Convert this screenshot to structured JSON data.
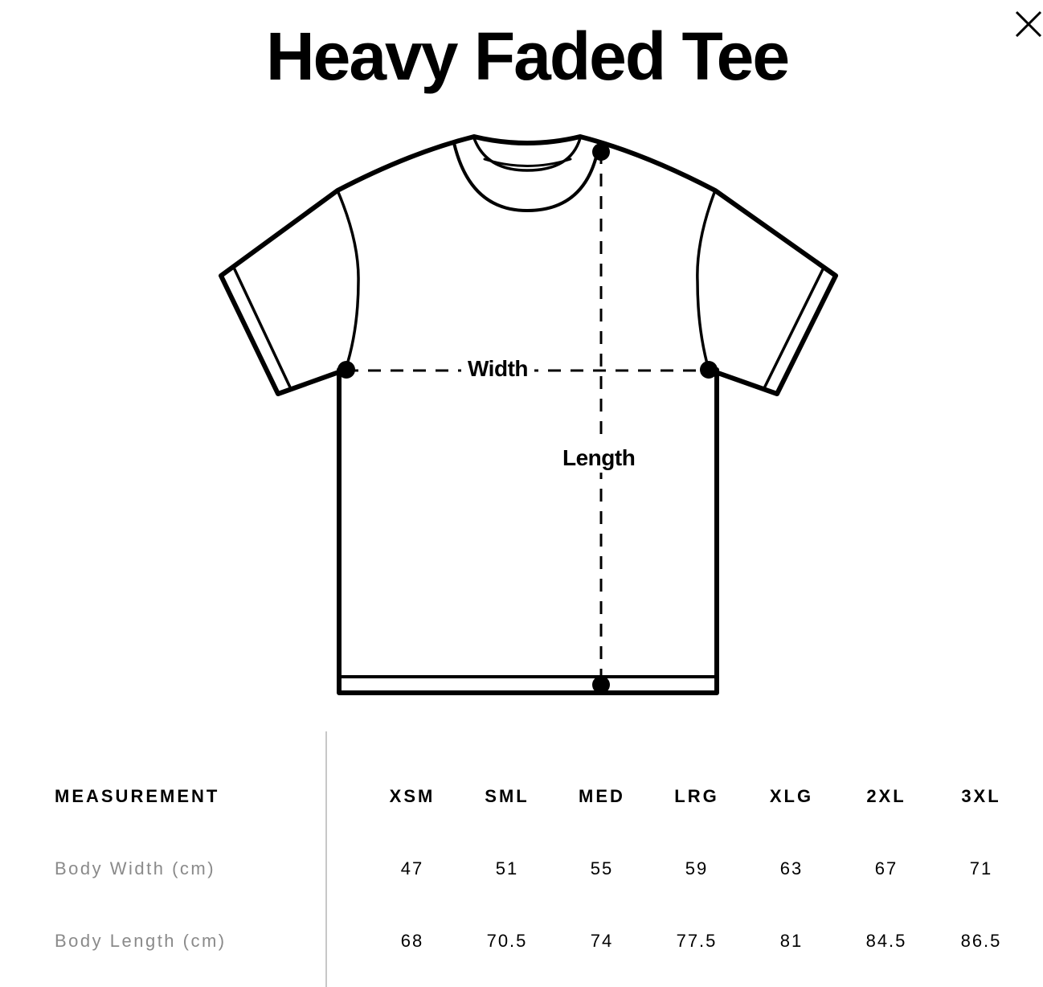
{
  "title": "Heavy Faded Tee",
  "close_icon": "close-x-icon",
  "diagram": {
    "width_label": "Width",
    "length_label": "Length"
  },
  "table": {
    "header_label": "MEASUREMENT",
    "sizes": [
      "XSM",
      "SML",
      "MED",
      "LRG",
      "XLG",
      "2XL",
      "3XL"
    ],
    "rows": [
      {
        "label": "Body Width (cm)",
        "values": [
          "47",
          "51",
          "55",
          "59",
          "63",
          "67",
          "71"
        ]
      },
      {
        "label": "Body Length (cm)",
        "values": [
          "68",
          "70.5",
          "74",
          "77.5",
          "81",
          "84.5",
          "86.5"
        ]
      }
    ]
  }
}
